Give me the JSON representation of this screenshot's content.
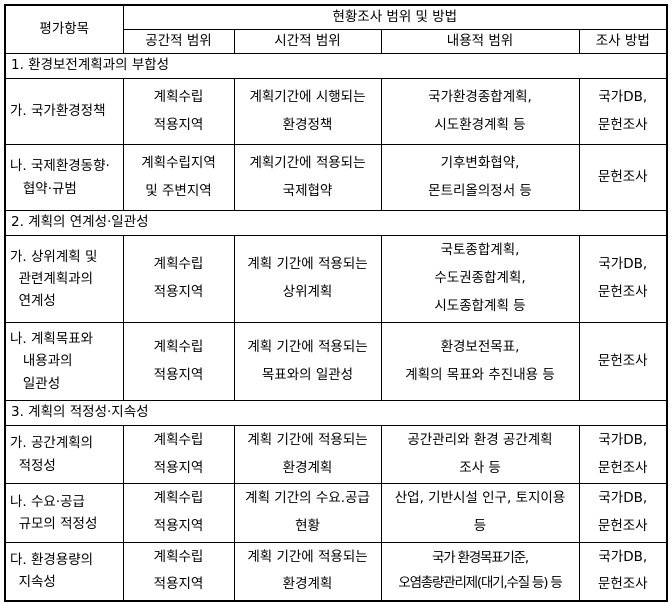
{
  "table": {
    "header": {
      "item_col": "평가항목",
      "group_title": "현황조사 범위 및 방법",
      "columns": [
        "공간적 범위",
        "시간적 범위",
        "내용적 범위",
        "조사 방법"
      ]
    },
    "sections": [
      {
        "title": "1. 환경보전계획과의 부합성",
        "rows": [
          {
            "item": "가. 국가환경정책",
            "spatial": "계획수립\n적용지역",
            "temporal": "계획기간에 시행되는\n환경정책",
            "content": "국가환경종합계획,\n시도환경계획 등",
            "method": "국가DB,\n문헌조사"
          },
          {
            "item": "나. 국제환경동향·\n   협약·규범",
            "spatial": "계획수립지역\n및 주변지역",
            "temporal": "계획기간에 적용되는\n국제협약",
            "content": "기후변화협약,\n몬트리올의정서 등",
            "method": "문헌조사"
          }
        ]
      },
      {
        "title": "2. 계획의 연계성·일관성",
        "rows": [
          {
            "item": "가. 상위계획 및\n  관련계획과의\n  연계성",
            "spatial": "계획수립\n적용지역",
            "temporal": "계획 기간에 적용되는\n상위계획",
            "content": "국토종합계획,\n수도권종합계획,\n시도종합계획 등",
            "method": "국가DB,\n문헌조사"
          },
          {
            "item": "나. 계획목표와\n   내용과의\n   일관성",
            "spatial": "계획수립\n적용지역",
            "temporal": "계획 기간에 적용되는\n목표와의 일관성",
            "content": "환경보전목표,\n계획의 목표와 추진내용 등",
            "method": "문헌조사"
          }
        ]
      },
      {
        "title": "3. 계획의 적정성·지속성",
        "rows": [
          {
            "item": "가. 공간계획의\n  적정성",
            "spatial": "계획수립\n적용지역",
            "temporal": "계획 기간에 적용되는\n환경계획",
            "content": "공간관리와 환경 공간계획\n조사 등",
            "method": "국가DB,\n문헌조사"
          },
          {
            "item": "나. 수요·공급\n  규모의 적정성",
            "spatial": "계획수립\n적용지역",
            "temporal": "계획 기간의 수요.공급\n현황",
            "content": "산업, 기반시설 인구, 토지이용\n등",
            "method": "국가DB,\n문헌조사"
          },
          {
            "item": "다. 환경용량의\n  지속성",
            "spatial": "계획수립\n적용지역",
            "temporal": "계획 기간에 적용되는\n환경계획",
            "content": "국가 환경목표기준,\n오염총량관리제(대기,수질 등) 등",
            "method": "국가DB,\n문헌조사"
          }
        ]
      }
    ]
  }
}
